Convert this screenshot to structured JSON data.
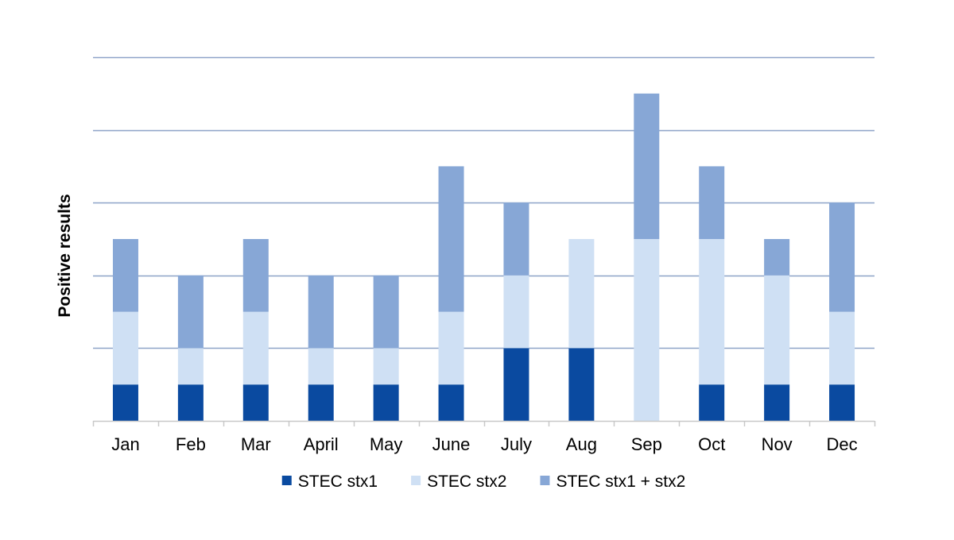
{
  "chart_data": {
    "type": "bar",
    "stacked": true,
    "title": "",
    "xlabel": "",
    "ylabel": "Positive results",
    "ylim": [
      0,
      10
    ],
    "y_gridlines": [
      0,
      2,
      4,
      6,
      8,
      10
    ],
    "y_tick_labels_shown": false,
    "categories": [
      "Jan",
      "Feb",
      "Mar",
      "April",
      "May",
      "June",
      "July",
      "Aug",
      "Sep",
      "Oct",
      "Nov",
      "Dec"
    ],
    "series": [
      {
        "name": "STEC stx1",
        "color": "#0a4aa0",
        "values": [
          1,
          1,
          1,
          1,
          1,
          1,
          2,
          2,
          0,
          1,
          1,
          1
        ]
      },
      {
        "name": "STEC stx2",
        "color": "#cfe0f4",
        "values": [
          2,
          1,
          2,
          1,
          1,
          2,
          2,
          3,
          5,
          4,
          3,
          2
        ]
      },
      {
        "name": "STEC stx1 + stx2",
        "color": "#87a7d6",
        "values": [
          2,
          2,
          2,
          2,
          2,
          4,
          2,
          0,
          4,
          2,
          1,
          3
        ]
      }
    ],
    "gridline_color": "#8ea3c8",
    "axis_color": "#c8c8c8",
    "legend_position": "bottom-center"
  }
}
